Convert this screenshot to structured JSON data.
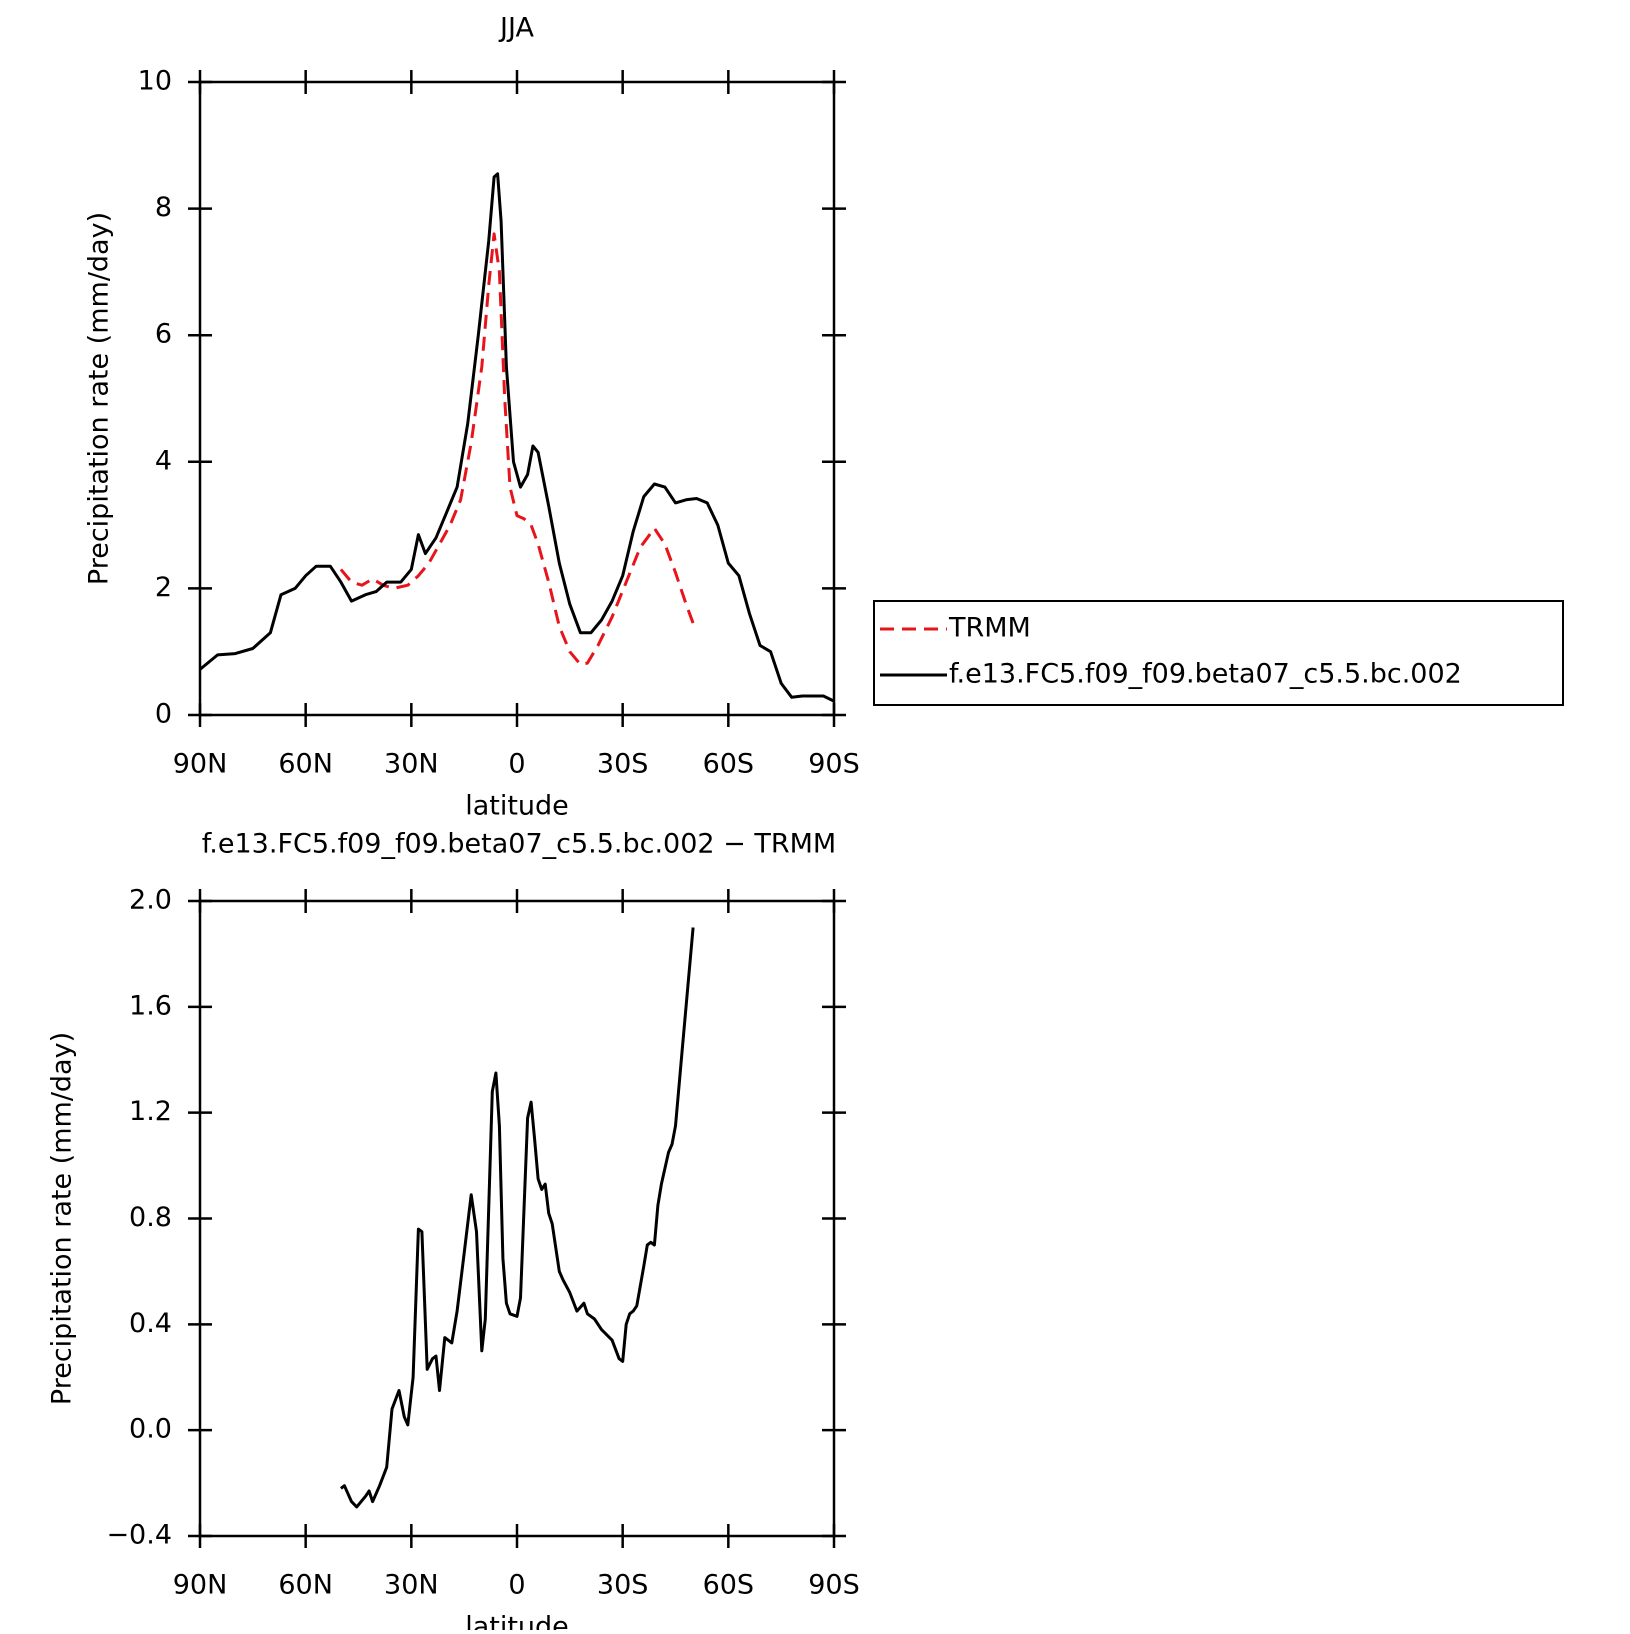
{
  "chart_data": [
    {
      "type": "line",
      "title": "JJA",
      "xlabel": "latitude",
      "ylabel": "Precipitation rate (mm/day)",
      "xlim": [
        90,
        -90
      ],
      "xticks": [
        {
          "value": 90,
          "label": "90N"
        },
        {
          "value": 60,
          "label": "60N"
        },
        {
          "value": 30,
          "label": "30N"
        },
        0,
        {
          "value": -30,
          "label": "30S"
        },
        {
          "value": -60,
          "label": "60S"
        },
        {
          "value": -90,
          "label": "90S"
        }
      ],
      "ylim": [
        0,
        10
      ],
      "yticks": [
        0,
        2,
        4,
        6,
        8,
        10
      ],
      "series": [
        {
          "name": "TRMM",
          "color": "#e8141b",
          "dash": true,
          "x": [
            50,
            47,
            44,
            41,
            38,
            35,
            31,
            28,
            25,
            22,
            19,
            16,
            13,
            10,
            8,
            6.5,
            5,
            3.5,
            2,
            0,
            -2,
            -4,
            -6,
            -9,
            -12,
            -15,
            -18,
            -20,
            -23,
            -27,
            -31,
            -35,
            -39,
            -42,
            -45,
            -48,
            -50
          ],
          "values": [
            2.3,
            2.1,
            2.05,
            2.15,
            2.05,
            2.0,
            2.05,
            2.2,
            2.4,
            2.7,
            3.0,
            3.4,
            4.3,
            5.5,
            6.8,
            7.6,
            7.0,
            5.0,
            3.6,
            3.15,
            3.1,
            3.0,
            2.7,
            2.1,
            1.4,
            1.0,
            0.8,
            0.82,
            1.1,
            1.55,
            2.1,
            2.65,
            2.95,
            2.7,
            2.25,
            1.75,
            1.45
          ]
        },
        {
          "name": "f.e13.FC5.f09_f09.beta07_c5.5.bc.002",
          "color": "#000000",
          "dash": false,
          "x": [
            90,
            85,
            80,
            75,
            70,
            67,
            63,
            60,
            57,
            53,
            50,
            47,
            43,
            40,
            37,
            33,
            30,
            28,
            26,
            23,
            20,
            17,
            14,
            11,
            8,
            6.5,
            5.5,
            4.5,
            3,
            1,
            -1,
            -3,
            -4.5,
            -6,
            -9,
            -12,
            -15,
            -18,
            -21,
            -24,
            -27,
            -30,
            -33,
            -36,
            -39,
            -42,
            -45,
            -48,
            -51,
            -54,
            -57,
            -60,
            -63,
            -66,
            -69,
            -72,
            -75,
            -78,
            -81,
            -84,
            -87,
            -90
          ],
          "values": [
            0.72,
            0.95,
            0.97,
            1.05,
            1.3,
            1.9,
            2.0,
            2.2,
            2.35,
            2.35,
            2.1,
            1.8,
            1.9,
            1.95,
            2.1,
            2.1,
            2.3,
            2.85,
            2.55,
            2.8,
            3.2,
            3.6,
            4.6,
            6.0,
            7.5,
            8.5,
            8.55,
            7.8,
            5.5,
            4.0,
            3.6,
            3.8,
            4.25,
            4.15,
            3.3,
            2.4,
            1.75,
            1.3,
            1.3,
            1.5,
            1.8,
            2.2,
            2.9,
            3.45,
            3.65,
            3.6,
            3.35,
            3.4,
            3.42,
            3.35,
            3.0,
            2.4,
            2.2,
            1.6,
            1.1,
            1.0,
            0.5,
            0.28,
            0.3,
            0.3,
            0.3,
            0.22
          ]
        }
      ]
    },
    {
      "type": "line",
      "title": "f.e13.FC5.f09_f09.beta07_c5.5.bc.002 − TRMM",
      "xlabel": "latitude",
      "ylabel": "Precipitation rate (mm/day)",
      "xlim": [
        90,
        -90
      ],
      "xticks": [
        {
          "value": 90,
          "label": "90N"
        },
        {
          "value": 60,
          "label": "60N"
        },
        {
          "value": 30,
          "label": "30N"
        },
        0,
        {
          "value": -30,
          "label": "30S"
        },
        {
          "value": -60,
          "label": "60S"
        },
        {
          "value": -90,
          "label": "90S"
        }
      ],
      "ylim": [
        -0.4,
        2.0
      ],
      "yticks": [
        {
          "value": -0.4,
          "label": "−0.4"
        },
        {
          "value": 0,
          "label": "0.0"
        },
        0.4,
        0.8,
        1.2,
        1.6,
        {
          "value": 2,
          "label": "2.0"
        }
      ],
      "color": "#000000",
      "x": [
        50,
        49,
        47,
        45.5,
        43,
        42,
        41,
        39,
        37,
        35.5,
        33.5,
        32,
        31,
        29.5,
        28,
        27,
        25.5,
        24,
        23,
        22,
        20.5,
        18.5,
        17,
        15,
        13,
        11.5,
        10,
        9,
        7,
        6,
        5,
        4,
        3,
        2,
        0,
        -1,
        -3,
        -4,
        -5,
        -6,
        -7,
        -8,
        -9,
        -10,
        -12,
        -13,
        -15,
        -17,
        -19,
        -20,
        -22,
        -24,
        -27,
        -29,
        -30,
        -31,
        -32,
        -33,
        -34,
        -36,
        -37,
        -38,
        -39,
        -40,
        -41,
        -43,
        -44,
        -45,
        -47,
        -50
      ],
      "values": [
        -0.22,
        -0.21,
        -0.27,
        -0.29,
        -0.25,
        -0.23,
        -0.27,
        -0.21,
        -0.14,
        0.08,
        0.15,
        0.05,
        0.02,
        0.2,
        0.76,
        0.75,
        0.23,
        0.27,
        0.28,
        0.15,
        0.35,
        0.33,
        0.45,
        0.67,
        0.89,
        0.75,
        0.3,
        0.42,
        1.28,
        1.35,
        1.15,
        0.65,
        0.48,
        0.44,
        0.43,
        0.5,
        1.18,
        1.24,
        1.1,
        0.95,
        0.91,
        0.93,
        0.82,
        0.78,
        0.6,
        0.57,
        0.52,
        0.45,
        0.48,
        0.44,
        0.42,
        0.38,
        0.34,
        0.27,
        0.26,
        0.4,
        0.44,
        0.45,
        0.47,
        0.62,
        0.7,
        0.71,
        0.7,
        0.85,
        0.93,
        1.05,
        1.08,
        1.15,
        1.45,
        1.9
      ]
    }
  ]
}
